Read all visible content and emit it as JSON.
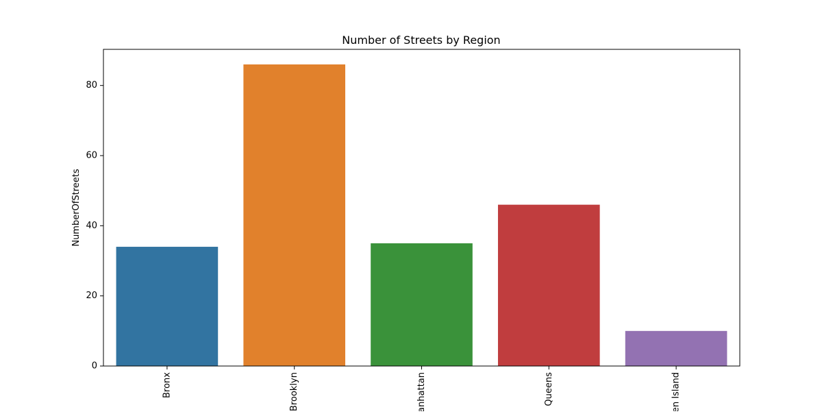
{
  "chart_data": {
    "type": "bar",
    "title": "Number of Streets by Region",
    "xlabel": "",
    "ylabel": "NumberOfStreets",
    "categories": [
      "Bronx",
      "Brooklyn",
      "Manhattan",
      "Queens",
      "Staten Island"
    ],
    "values": [
      34,
      86,
      35,
      46,
      10
    ],
    "colors": [
      "#3274a1",
      "#e1812c",
      "#3a923a",
      "#c03d3e",
      "#9372b2"
    ],
    "ylim": [
      0,
      90.3
    ],
    "yticks": [
      0,
      20,
      40,
      60,
      80
    ],
    "grid": false,
    "legend": "none"
  }
}
